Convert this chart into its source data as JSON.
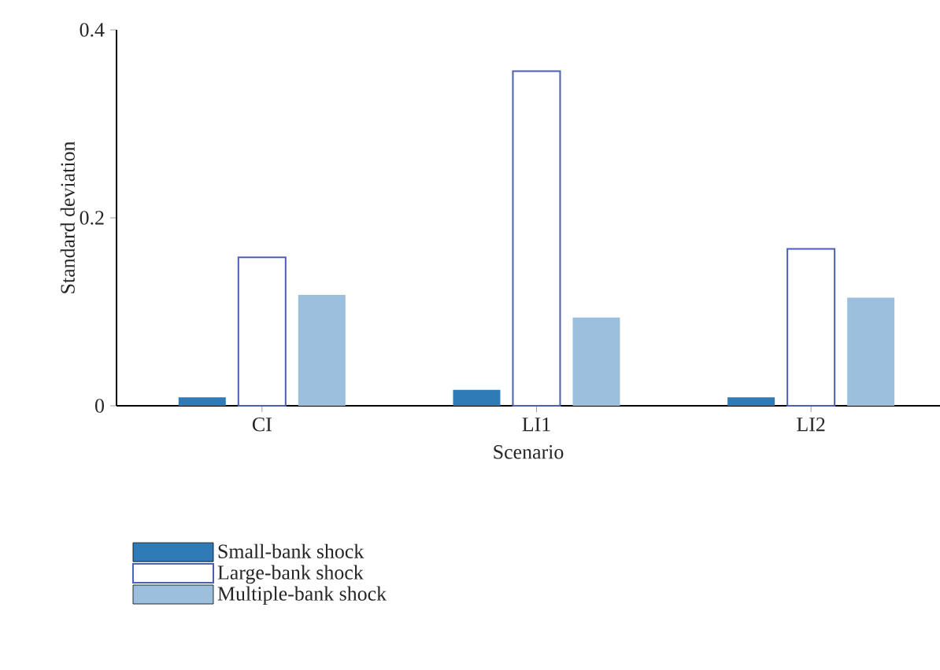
{
  "chart_data": {
    "type": "bar",
    "xlabel": "Scenario",
    "ylabel": "Standard deviation",
    "categories": [
      "CI",
      "LI1",
      "LI2"
    ],
    "series": [
      {
        "name": "Small-bank shock",
        "color": "#2e7bb8",
        "values": [
          0.009,
          0.017,
          0.009
        ]
      },
      {
        "name": "Large-bank shock",
        "color": "#ffffff",
        "values": [
          0.158,
          0.356,
          0.167
        ]
      },
      {
        "name": "Multiple-bank shock",
        "color": "#9bbfdc",
        "values": [
          0.118,
          0.094,
          0.115
        ]
      }
    ],
    "ylim": [
      0,
      0.4
    ],
    "yticks": [
      0,
      0.2,
      0.4
    ],
    "legend": "bottom left"
  }
}
